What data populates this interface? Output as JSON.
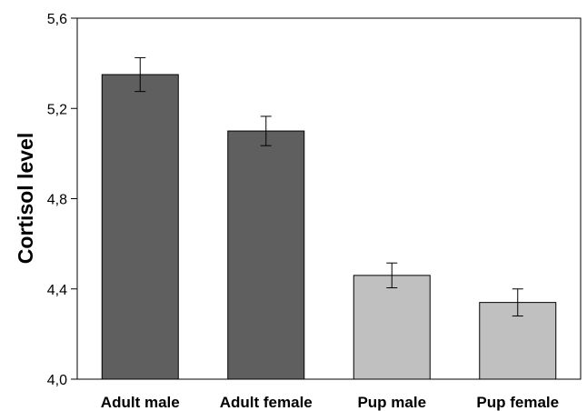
{
  "chart_data": {
    "type": "bar",
    "title": "",
    "xlabel": "",
    "ylabel": "Cortisol level",
    "ylim": [
      4.0,
      5.6
    ],
    "yticks": [
      "4,0",
      "4,4",
      "4,8",
      "5,2",
      "5,6"
    ],
    "yticks_values": [
      4.0,
      4.4,
      4.8,
      5.2,
      5.6
    ],
    "categories": [
      "Adult male",
      "Adult female",
      "Pup male",
      "Pup female"
    ],
    "values": [
      5.35,
      5.1,
      4.46,
      4.34
    ],
    "error": [
      0.075,
      0.065,
      0.055,
      0.06
    ],
    "bar_colors": [
      "#5f5f5f",
      "#5f5f5f",
      "#c0c0c0",
      "#c0c0c0"
    ],
    "grid": false,
    "legend": "none"
  }
}
